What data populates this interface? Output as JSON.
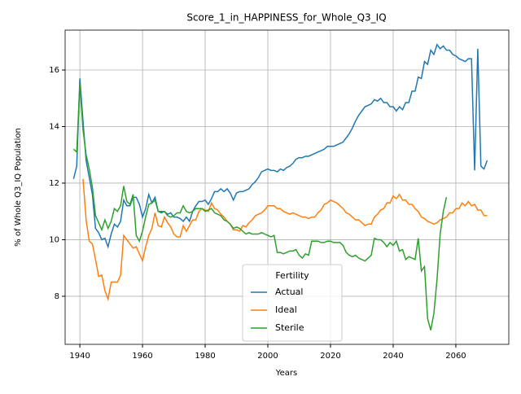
{
  "chart_data": {
    "type": "line",
    "title": "Score_1_in_HAPPINESS_for_Whole_Q3_IQ",
    "xlabel": "Years",
    "ylabel": "% of Whole Q3_IQ Population",
    "xlim": [
      1935.3,
      2076.9
    ],
    "ylim": [
      6.3,
      17.41
    ],
    "xticks": [
      1940,
      1960,
      1980,
      2000,
      2020,
      2040,
      2060
    ],
    "yticks": [
      8,
      10,
      12,
      14,
      16
    ],
    "grid": true,
    "legend_title": "Fertility",
    "legend": "lower center",
    "x": [
      1938,
      1939,
      1940,
      1941,
      1942,
      1943,
      1944,
      1945,
      1946,
      1947,
      1948,
      1949,
      1950,
      1951,
      1952,
      1953,
      1954,
      1955,
      1956,
      1957,
      1958,
      1959,
      1960,
      1961,
      1962,
      1963,
      1964,
      1965,
      1966,
      1967,
      1968,
      1969,
      1970,
      1971,
      1972,
      1973,
      1974,
      1975,
      1976,
      1977,
      1978,
      1979,
      1980,
      1981,
      1982,
      1983,
      1984,
      1985,
      1986,
      1987,
      1988,
      1989,
      1990,
      1991,
      1992,
      1993,
      1994,
      1995,
      1996,
      1997,
      1998,
      1999,
      2000,
      2001,
      2002,
      2003,
      2004,
      2005,
      2006,
      2007,
      2008,
      2009,
      2010,
      2011,
      2012,
      2013,
      2014,
      2015,
      2016,
      2017,
      2018,
      2019,
      2020,
      2021,
      2022,
      2023,
      2024,
      2025,
      2026,
      2027,
      2028,
      2029,
      2030,
      2031,
      2032,
      2033,
      2034,
      2035,
      2036,
      2037,
      2038,
      2039,
      2040,
      2041,
      2042,
      2043,
      2044,
      2045,
      2046,
      2047,
      2048,
      2049,
      2050,
      2051,
      2052,
      2053,
      2054,
      2055,
      2056,
      2057,
      2058,
      2059,
      2060,
      2061,
      2062,
      2063,
      2064,
      2065,
      2066,
      2067,
      2068,
      2069,
      2070
    ],
    "series": [
      {
        "name": "Actual",
        "color": "#1f77b4",
        "values": [
          12.15,
          12.6,
          15.7,
          14.2,
          12.8,
          12.2,
          11.6,
          10.4,
          10.25,
          10.0,
          10.05,
          9.75,
          10.2,
          10.55,
          10.45,
          10.65,
          11.4,
          11.2,
          11.2,
          11.5,
          11.5,
          11.25,
          10.8,
          11.1,
          11.6,
          11.3,
          11.5,
          11.0,
          10.95,
          11.0,
          10.9,
          10.95,
          10.8,
          10.8,
          10.75,
          10.65,
          10.8,
          10.65,
          11.0,
          11.2,
          11.35,
          11.35,
          11.4,
          11.25,
          11.45,
          11.7,
          11.7,
          11.8,
          11.7,
          11.8,
          11.65,
          11.4,
          11.65,
          11.7,
          11.7,
          11.75,
          11.8,
          11.95,
          12.05,
          12.2,
          12.4,
          12.45,
          12.5,
          12.45,
          12.45,
          12.4,
          12.5,
          12.45,
          12.55,
          12.6,
          12.7,
          12.85,
          12.9,
          12.9,
          12.95,
          12.95,
          13.0,
          13.05,
          13.1,
          13.15,
          13.2,
          13.3,
          13.3,
          13.3,
          13.35,
          13.4,
          13.45,
          13.6,
          13.75,
          13.95,
          14.2,
          14.4,
          14.55,
          14.7,
          14.75,
          14.8,
          14.95,
          14.9,
          15.0,
          14.85,
          14.85,
          14.7,
          14.7,
          14.55,
          14.7,
          14.6,
          14.85,
          14.85,
          15.25,
          15.25,
          15.75,
          15.7,
          16.3,
          16.2,
          16.7,
          16.55,
          16.9,
          16.75,
          16.85,
          16.7,
          16.7,
          16.55,
          16.5,
          16.4,
          16.35,
          16.3,
          16.4,
          16.4,
          12.45,
          16.75,
          12.6,
          12.5,
          12.8
        ]
      },
      {
        "name": "Ideal",
        "color": "#ff7f0e",
        "values": [
          null,
          null,
          null,
          12.15,
          10.7,
          9.95,
          9.85,
          9.3,
          8.7,
          8.75,
          8.2,
          7.9,
          8.5,
          8.5,
          8.5,
          8.75,
          10.15,
          10.0,
          9.85,
          9.7,
          9.75,
          9.5,
          9.25,
          9.75,
          10.15,
          10.4,
          10.95,
          10.5,
          10.45,
          10.8,
          10.6,
          10.45,
          10.2,
          10.1,
          10.1,
          10.5,
          10.3,
          10.5,
          10.7,
          10.7,
          11.0,
          11.1,
          11.05,
          11.0,
          11.3,
          11.1,
          11.05,
          10.9,
          10.8,
          10.65,
          10.55,
          10.35,
          10.35,
          10.3,
          10.5,
          10.45,
          10.6,
          10.7,
          10.85,
          10.9,
          10.95,
          11.05,
          11.2,
          11.2,
          11.2,
          11.1,
          11.1,
          11.0,
          10.95,
          10.9,
          10.95,
          10.9,
          10.85,
          10.8,
          10.8,
          10.75,
          10.8,
          10.8,
          10.95,
          11.05,
          11.25,
          11.3,
          11.4,
          11.35,
          11.3,
          11.2,
          11.1,
          10.95,
          10.9,
          10.8,
          10.7,
          10.7,
          10.6,
          10.5,
          10.55,
          10.55,
          10.8,
          10.9,
          11.05,
          11.1,
          11.3,
          11.3,
          11.55,
          11.45,
          11.6,
          11.4,
          11.4,
          11.25,
          11.25,
          11.1,
          11.0,
          10.8,
          10.75,
          10.65,
          10.6,
          10.55,
          10.6,
          10.7,
          10.75,
          10.8,
          10.95,
          10.95,
          11.1,
          11.1,
          11.3,
          11.2,
          11.35,
          11.2,
          11.25,
          11.05,
          11.05,
          10.85,
          10.85
        ]
      },
      {
        "name": "Sterile",
        "color": "#2ca02c",
        "values": [
          13.2,
          13.1,
          15.5,
          13.9,
          13.0,
          12.5,
          11.85,
          10.85,
          10.6,
          10.35,
          10.7,
          10.4,
          10.65,
          11.1,
          11.0,
          11.2,
          11.9,
          11.35,
          11.25,
          11.6,
          10.15,
          9.95,
          10.3,
          10.8,
          11.25,
          11.3,
          11.4,
          11.0,
          11.0,
          11.0,
          10.85,
          10.8,
          10.85,
          10.95,
          10.95,
          11.2,
          11.0,
          10.95,
          11.0,
          11.1,
          11.1,
          11.1,
          11.0,
          11.05,
          11.1,
          10.95,
          10.9,
          10.85,
          10.7,
          10.65,
          10.55,
          10.4,
          10.45,
          10.4,
          10.3,
          10.2,
          10.25,
          10.2,
          10.2,
          10.2,
          10.25,
          10.2,
          10.15,
          10.1,
          10.15,
          9.55,
          9.55,
          9.5,
          9.55,
          9.6,
          9.6,
          9.65,
          9.45,
          9.35,
          9.5,
          9.45,
          9.95,
          9.95,
          9.95,
          9.9,
          9.9,
          9.95,
          9.95,
          9.9,
          9.9,
          9.9,
          9.8,
          9.55,
          9.45,
          9.4,
          9.45,
          9.35,
          9.3,
          9.25,
          9.35,
          9.45,
          10.05,
          10.0,
          10.0,
          9.9,
          9.75,
          9.9,
          9.8,
          9.95,
          9.6,
          9.65,
          9.3,
          9.4,
          9.35,
          9.3,
          10.05,
          8.9,
          9.05,
          7.2,
          6.8,
          7.4,
          8.6,
          10.2,
          11.0,
          11.5,
          null,
          null,
          null,
          null,
          null,
          null,
          null,
          null,
          null,
          null,
          null,
          null,
          null
        ]
      }
    ]
  }
}
